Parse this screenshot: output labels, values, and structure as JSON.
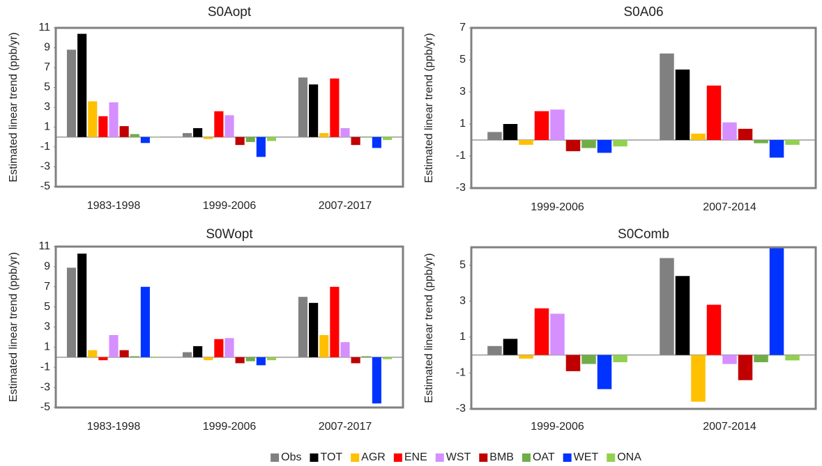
{
  "legend": [
    {
      "name": "Obs",
      "color": "#808080"
    },
    {
      "name": "TOT",
      "color": "#000000"
    },
    {
      "name": "AGR",
      "color": "#ffc000"
    },
    {
      "name": "ENE",
      "color": "#ff0000"
    },
    {
      "name": "WST",
      "color": "#d58fff"
    },
    {
      "name": "BMB",
      "color": "#c00000"
    },
    {
      "name": "OAT",
      "color": "#70ad47"
    },
    {
      "name": "WET",
      "color": "#0033ff"
    },
    {
      "name": "ONA",
      "color": "#92d050"
    }
  ],
  "chart_data": [
    {
      "type": "bar",
      "title": "S0Aopt",
      "ylabel": "Estimated linear trend (ppb/yr)",
      "categories": [
        "1983-1998",
        "1999-2006",
        "2007-2017"
      ],
      "series": [
        {
          "values": [
            8.8,
            0.4,
            6.0
          ]
        },
        {
          "values": [
            10.4,
            0.9,
            5.3
          ]
        },
        {
          "values": [
            3.6,
            -0.2,
            0.4
          ]
        },
        {
          "values": [
            2.1,
            2.6,
            5.9
          ]
        },
        {
          "values": [
            3.5,
            2.2,
            0.9
          ]
        },
        {
          "values": [
            1.1,
            -0.8,
            -0.8
          ]
        },
        {
          "values": [
            0.3,
            -0.5,
            0.05
          ]
        },
        {
          "values": [
            -0.6,
            -2.0,
            -1.1
          ]
        },
        {
          "values": [
            0.05,
            -0.4,
            -0.3
          ]
        }
      ],
      "ylim": [
        -5,
        11
      ],
      "yticks": [
        -5,
        -3,
        -1,
        1,
        3,
        5,
        7,
        9,
        11
      ]
    },
    {
      "type": "bar",
      "title": "S0A06",
      "ylabel": "Estimated linear trend (ppb/yr)",
      "categories": [
        "1999-2006",
        "2007-2014"
      ],
      "series": [
        {
          "values": [
            0.5,
            5.4
          ]
        },
        {
          "values": [
            1.0,
            4.4
          ]
        },
        {
          "values": [
            -0.3,
            0.4
          ]
        },
        {
          "values": [
            1.8,
            3.4
          ]
        },
        {
          "values": [
            1.9,
            1.1
          ]
        },
        {
          "values": [
            -0.7,
            0.7
          ]
        },
        {
          "values": [
            -0.5,
            -0.2
          ]
        },
        {
          "values": [
            -0.8,
            -1.1
          ]
        },
        {
          "values": [
            -0.4,
            -0.3
          ]
        }
      ],
      "ylim": [
        -3,
        7
      ],
      "yticks": [
        -3,
        -1,
        1,
        3,
        5,
        7
      ]
    },
    {
      "type": "bar",
      "title": "S0Wopt",
      "ylabel": "Estimated linear trend (ppb/yr)",
      "categories": [
        "1983-1998",
        "1999-2006",
        "2007-2017"
      ],
      "series": [
        {
          "values": [
            8.9,
            0.5,
            6.0
          ]
        },
        {
          "values": [
            10.3,
            1.1,
            5.4
          ]
        },
        {
          "values": [
            0.7,
            -0.3,
            2.2
          ]
        },
        {
          "values": [
            -0.3,
            1.8,
            7.0
          ]
        },
        {
          "values": [
            2.2,
            1.9,
            1.5
          ]
        },
        {
          "values": [
            0.7,
            -0.6,
            -0.6
          ]
        },
        {
          "values": [
            0.1,
            -0.4,
            0.1
          ]
        },
        {
          "values": [
            7.0,
            -0.8,
            -4.6
          ]
        },
        {
          "values": [
            0.05,
            -0.3,
            -0.2
          ]
        }
      ],
      "ylim": [
        -5,
        11
      ],
      "yticks": [
        -5,
        -3,
        -1,
        1,
        3,
        5,
        7,
        9,
        11
      ]
    },
    {
      "type": "bar",
      "title": "S0Comb",
      "ylabel": "Estimated linear trend (ppb/yr)",
      "categories": [
        "1999-2006",
        "2007-2014"
      ],
      "series": [
        {
          "values": [
            0.5,
            5.4
          ]
        },
        {
          "values": [
            0.9,
            4.4
          ]
        },
        {
          "values": [
            -0.2,
            -2.6
          ]
        },
        {
          "values": [
            2.6,
            2.8
          ]
        },
        {
          "values": [
            2.3,
            -0.5
          ]
        },
        {
          "values": [
            -0.9,
            -1.4
          ]
        },
        {
          "values": [
            -0.5,
            -0.4
          ]
        },
        {
          "values": [
            -1.9,
            6.0
          ]
        },
        {
          "values": [
            -0.4,
            -0.3
          ]
        }
      ],
      "ylim": [
        -3,
        6
      ],
      "yticks": [
        -3,
        -1,
        1,
        3,
        5
      ]
    }
  ]
}
